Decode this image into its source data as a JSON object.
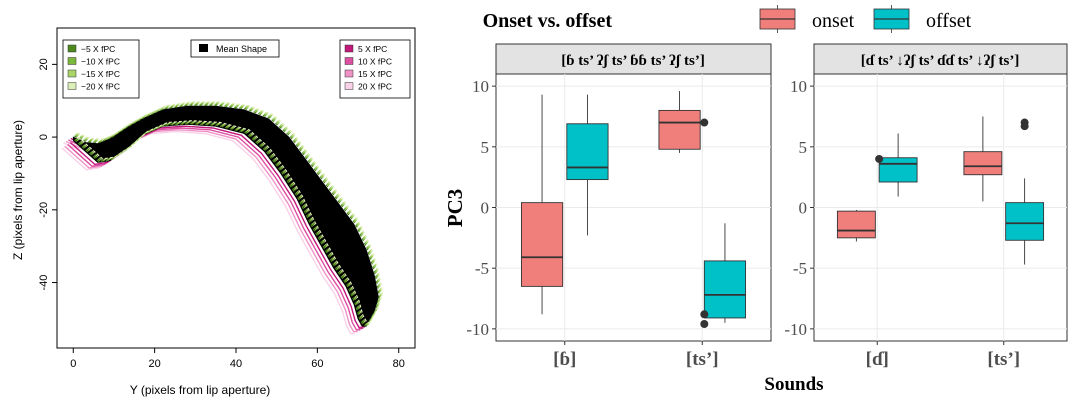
{
  "chart_data": [
    {
      "type": "line",
      "xlabel": "Y (pixels from lip aperture)",
      "ylabel": "Z (pixels from lip aperture)",
      "xlim": [
        -4,
        84
      ],
      "ylim": [
        -58,
        30
      ],
      "x_ticks": [
        0,
        20,
        40,
        60,
        80
      ],
      "y_ticks": [
        20,
        0,
        -20,
        -40
      ],
      "legend_left": [
        {
          "label": "−5 X fPC",
          "color": "#4d8a1e"
        },
        {
          "label": "−10 X fPC",
          "color": "#7cb83a"
        },
        {
          "label": "−15 X fPC",
          "color": "#a8d468"
        },
        {
          "label": "−20 X fPC",
          "color": "#dcefb6"
        }
      ],
      "legend_mean": {
        "label": "Mean Shape",
        "color": "#000000"
      },
      "legend_right": [
        {
          "label": "5 X fPC",
          "color": "#c2187a"
        },
        {
          "label": "10 X fPC",
          "color": "#dd4fa1"
        },
        {
          "label": "15 X fPC",
          "color": "#ef93c7"
        },
        {
          "label": "20 X fPC",
          "color": "#f9d2e8"
        }
      ],
      "mean_shape": {
        "upper": [
          [
            0,
            0
          ],
          [
            3,
            -1.5
          ],
          [
            6,
            -1.8
          ],
          [
            9,
            -0.5
          ],
          [
            13,
            2.5
          ],
          [
            17,
            5
          ],
          [
            22,
            7.5
          ],
          [
            28,
            8.5
          ],
          [
            35,
            8.5
          ],
          [
            42,
            7.5
          ],
          [
            48,
            5
          ],
          [
            53,
            0
          ],
          [
            57,
            -6
          ],
          [
            61,
            -12
          ],
          [
            65,
            -18
          ],
          [
            69,
            -24
          ],
          [
            72,
            -31
          ],
          [
            74,
            -38
          ],
          [
            75,
            -44
          ],
          [
            74,
            -48
          ],
          [
            72,
            -52
          ]
        ],
        "lower": [
          [
            0,
            -1
          ],
          [
            3,
            -4
          ],
          [
            6,
            -7
          ],
          [
            9,
            -6.5
          ],
          [
            13,
            -3.5
          ],
          [
            17,
            0.5
          ],
          [
            22,
            3
          ],
          [
            28,
            3.5
          ],
          [
            35,
            3
          ],
          [
            42,
            1
          ],
          [
            47,
            -4
          ],
          [
            51,
            -10
          ],
          [
            55,
            -17
          ],
          [
            58,
            -24
          ],
          [
            61,
            -30
          ],
          [
            64,
            -36
          ],
          [
            67,
            -41
          ],
          [
            69,
            -46
          ],
          [
            70,
            -50
          ],
          [
            71,
            -52
          ],
          [
            72,
            -52
          ]
        ]
      }
    },
    {
      "type": "box",
      "legend_title": "Onset vs. offset",
      "legend": [
        {
          "label": "onset",
          "color": "#f07f7b"
        },
        {
          "label": "offset",
          "color": "#00c0c8"
        }
      ],
      "xlabel": "Sounds",
      "ylabel": "PC3",
      "ylim": [
        -11,
        11
      ],
      "y_ticks": [
        10,
        5,
        0,
        -5,
        -10
      ],
      "panels": [
        {
          "strip": "[ɓ ts’ ʔʃ ts’ ɓɓ ts’ ʔʃ ts’]",
          "categories": [
            "[ɓ]",
            "[ts’]"
          ],
          "boxes": [
            {
              "category": "[ɓ]",
              "group": "onset",
              "whisker_low": -8.8,
              "q1": -6.5,
              "median": -4.1,
              "q3": 0.4,
              "whisker_high": 9.3,
              "outliers": []
            },
            {
              "category": "[ɓ]",
              "group": "offset",
              "whisker_low": -2.3,
              "q1": 2.3,
              "median": 3.3,
              "q3": 6.9,
              "whisker_high": 9.3,
              "outliers": []
            },
            {
              "category": "[ts’]",
              "group": "onset",
              "whisker_low": 4.5,
              "q1": 4.8,
              "median": 7.0,
              "q3": 8.0,
              "whisker_high": 9.6,
              "outliers": []
            },
            {
              "category": "[ts’]",
              "group": "offset",
              "whisker_low": -9.5,
              "q1": -9.1,
              "median": -7.2,
              "q3": -4.4,
              "whisker_high": -1.3,
              "outliers": []
            }
          ],
          "outliers_left_of_offset": [
            {
              "category": "[ts’]",
              "value": 7.0
            },
            {
              "category": "[ts’]",
              "value": -8.8
            },
            {
              "category": "[ts’]",
              "value": -9.6
            }
          ]
        },
        {
          "strip": "[ɗ ts’ ↓ʔʃ ts’ ɗɗ ts’ ↓ʔʃ ts’]",
          "categories": [
            "[ɗ]",
            "[ts’]"
          ],
          "boxes": [
            {
              "category": "[ɗ]",
              "group": "onset",
              "whisker_low": -2.8,
              "q1": -2.5,
              "median": -1.9,
              "q3": -0.3,
              "whisker_high": -0.2,
              "outliers": []
            },
            {
              "category": "[ɗ]",
              "group": "offset",
              "whisker_low": 0.9,
              "q1": 2.1,
              "median": 3.6,
              "q3": 4.1,
              "whisker_high": 6.1,
              "outliers": []
            },
            {
              "category": "[ts’]",
              "group": "onset",
              "whisker_low": 0.5,
              "q1": 2.7,
              "median": 3.4,
              "q3": 4.6,
              "whisker_high": 7.5,
              "outliers": []
            },
            {
              "category": "[ts’]",
              "group": "offset",
              "whisker_low": -4.7,
              "q1": -2.7,
              "median": -1.3,
              "q3": 0.4,
              "whisker_high": 2.4,
              "outliers": [
                7.0,
                6.7
              ]
            }
          ],
          "outliers_left_of_offset": [
            {
              "category": "[ɗ]",
              "value": 4.0
            }
          ]
        }
      ]
    }
  ]
}
